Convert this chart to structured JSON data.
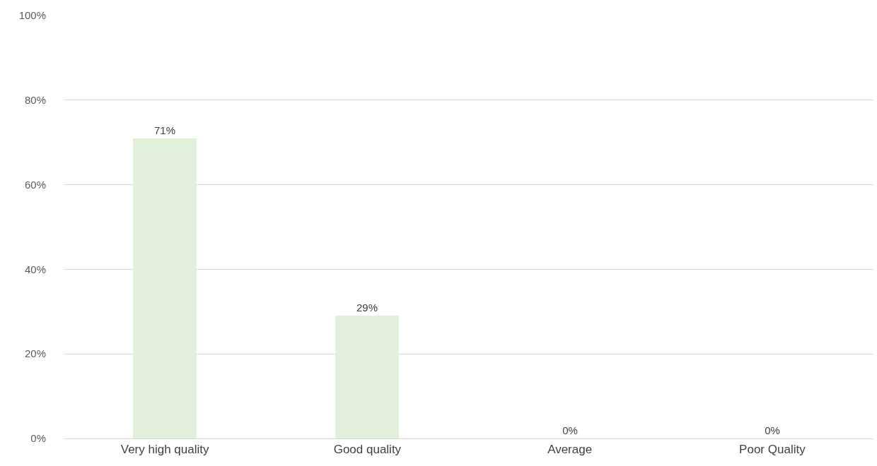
{
  "chart_data": {
    "type": "bar",
    "categories": [
      "Very high quality",
      "Good quality",
      "Average",
      "Poor Quality"
    ],
    "values": [
      71,
      29,
      0,
      0
    ],
    "value_labels": [
      "71%",
      "29%",
      "0%",
      "0%"
    ],
    "color": "#e2efda",
    "ylim": [
      0,
      100
    ],
    "yticks": [
      {
        "value": 0,
        "label": "0%"
      },
      {
        "value": 20,
        "label": "20%"
      },
      {
        "value": 40,
        "label": "40%"
      },
      {
        "value": 60,
        "label": "60%"
      },
      {
        "value": 80,
        "label": "80%"
      },
      {
        "value": 100,
        "label": "100%"
      }
    ],
    "grid": "y",
    "legend": false
  }
}
